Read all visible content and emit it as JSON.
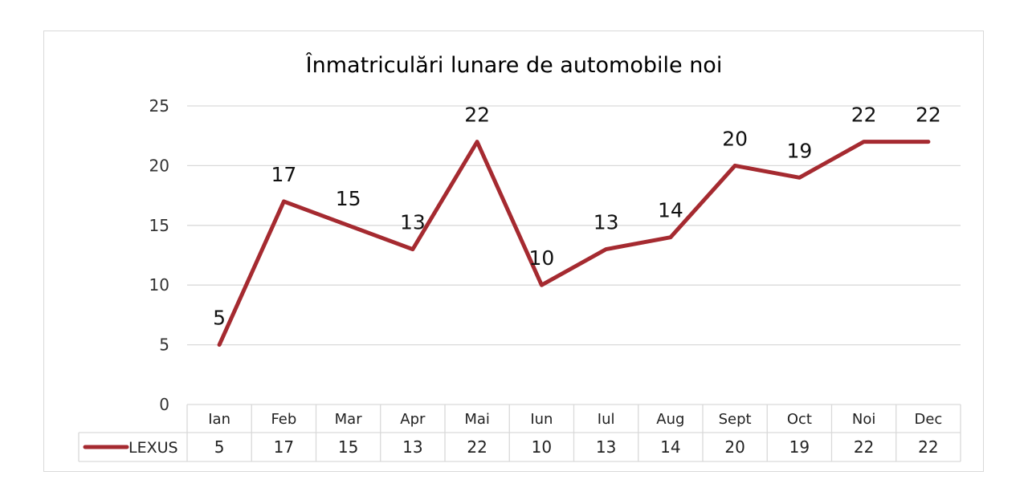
{
  "chart_data": {
    "type": "line",
    "title": "Înmatriculări lunare de automobile noi",
    "categories": [
      "Ian",
      "Feb",
      "Mar",
      "Apr",
      "Mai",
      "Iun",
      "Iul",
      "Aug",
      "Sept",
      "Oct",
      "Noi",
      "Dec"
    ],
    "series": [
      {
        "name": "LEXUS",
        "values": [
          5,
          17,
          15,
          13,
          22,
          10,
          13,
          14,
          20,
          19,
          22,
          22
        ],
        "color": "#a52a30"
      }
    ],
    "ylim": [
      0,
      25
    ],
    "yticks": [
      0,
      5,
      10,
      15,
      20,
      25
    ],
    "grid": true,
    "data_labels": true,
    "data_table": true,
    "legend": "data-table"
  }
}
